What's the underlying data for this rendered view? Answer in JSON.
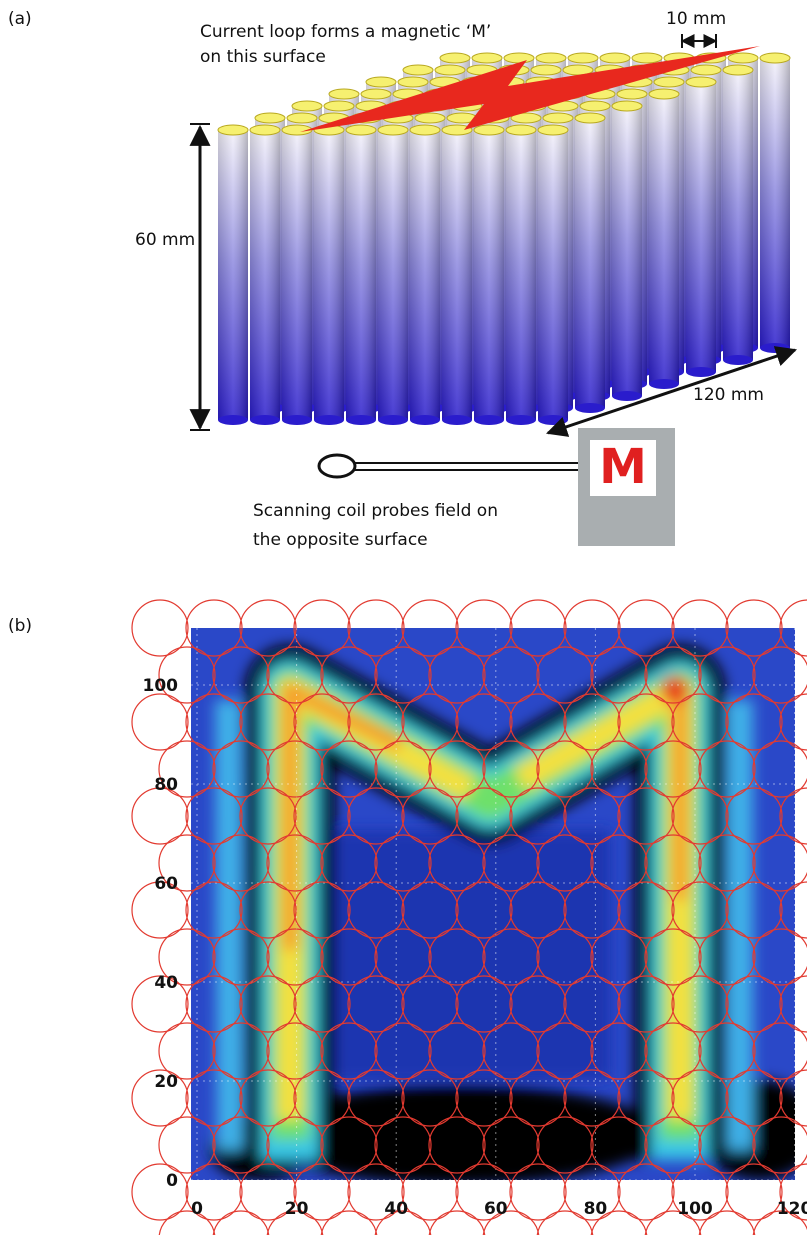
{
  "panel_a": {
    "label": "(a)",
    "top_note": [
      "Current loop forms a magnetic ‘M’",
      "on this surface"
    ],
    "spacing_label": "10 mm",
    "height_label": "60 mm",
    "width_label": "120 mm",
    "probe_note": [
      "Scanning coil probes field on",
      "the opposite surface"
    ],
    "box_letter": "M"
  },
  "panel_b": {
    "label": "(b)",
    "xticks": [
      0,
      20,
      40,
      60,
      80,
      100,
      120
    ],
    "yticks": [
      0,
      20,
      40,
      60,
      80,
      100
    ]
  }
}
